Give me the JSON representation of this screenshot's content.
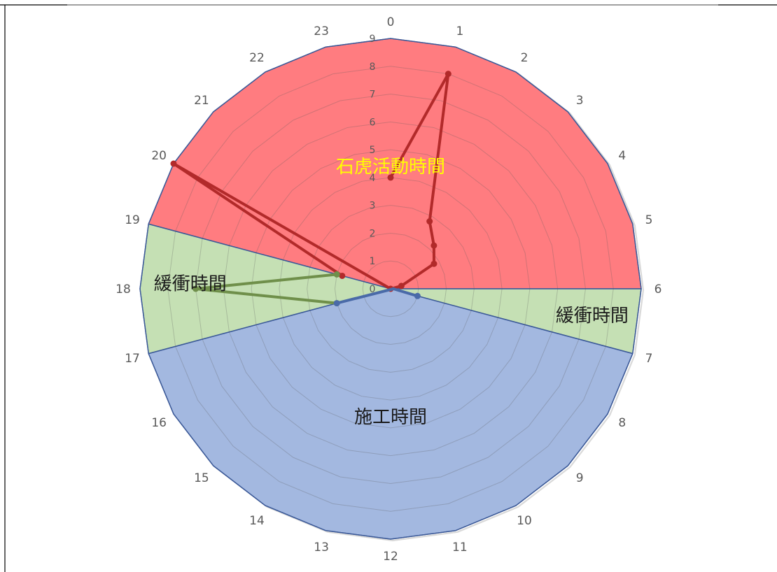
{
  "chart_data": {
    "type": "radar",
    "categories": [
      "0",
      "1",
      "2",
      "3",
      "4",
      "5",
      "6",
      "7",
      "8",
      "9",
      "10",
      "11",
      "12",
      "13",
      "14",
      "15",
      "16",
      "17",
      "18",
      "19",
      "20",
      "21",
      "22",
      "23"
    ],
    "radial_ticks": [
      "0",
      "1",
      "2",
      "3",
      "4",
      "5",
      "6",
      "7",
      "8",
      "9"
    ],
    "rlim": [
      0,
      9
    ],
    "zones": [
      {
        "name": "石虎活動時間",
        "hours": [
          19,
          20,
          21,
          22,
          23,
          0,
          1,
          2,
          3,
          4,
          5,
          6
        ],
        "fill": "#ff7c80",
        "label_hour": 0,
        "label_r": 4.4,
        "label_color": "#ffff00"
      },
      {
        "name": "緩衝時間",
        "hours": [
          6,
          7
        ],
        "fill": "#c5e0b4",
        "label_hour": 6.5,
        "label_r": 7.3,
        "label_color": "#1a1a1a"
      },
      {
        "name": "施工時間",
        "hours": [
          7,
          8,
          9,
          10,
          11,
          12,
          13,
          14,
          15,
          16,
          17
        ],
        "fill": "#a3b8e0",
        "label_hour": 12,
        "label_r": 4.6,
        "label_color": "#1a1a1a"
      },
      {
        "name": "緩衝時間",
        "hours": [
          17,
          18,
          19
        ],
        "fill": "#c5e0b4",
        "label_hour": 18.1,
        "label_r": 7.2,
        "label_color": "#1a1a1a"
      }
    ],
    "series": [
      {
        "color": "#b22a2a",
        "values": [
          4,
          8,
          2.8,
          2.2,
          1.8,
          0.4,
          0,
          null,
          null,
          null,
          null,
          null,
          null,
          null,
          null,
          null,
          null,
          null,
          0,
          1.8,
          9,
          null,
          null,
          null
        ],
        "segments": [
          [
            19,
            20,
            18
          ],
          [
            0,
            1,
            2,
            3,
            4,
            5,
            6
          ]
        ],
        "marker_hours": [
          0,
          1,
          2,
          3,
          4,
          5,
          18,
          19,
          20
        ]
      },
      {
        "color": "#6f8f4a",
        "values": [
          null,
          null,
          null,
          null,
          null,
          null,
          null,
          null,
          null,
          null,
          null,
          null,
          null,
          null,
          null,
          null,
          null,
          2,
          7,
          2,
          null,
          null,
          null,
          null
        ],
        "segments": [
          [
            17,
            18,
            19
          ]
        ],
        "marker_hours": [
          17,
          18,
          19
        ]
      },
      {
        "color": "#4a6aa8",
        "values": [
          null,
          null,
          null,
          null,
          null,
          null,
          0.1,
          1.0,
          null,
          null,
          null,
          null,
          null,
          null,
          null,
          null,
          null,
          2,
          null,
          null,
          null,
          null,
          null,
          null
        ],
        "segments": [
          [
            6,
            7
          ],
          [
            17,
            6
          ]
        ],
        "marker_hours": [
          7,
          17
        ]
      }
    ]
  }
}
